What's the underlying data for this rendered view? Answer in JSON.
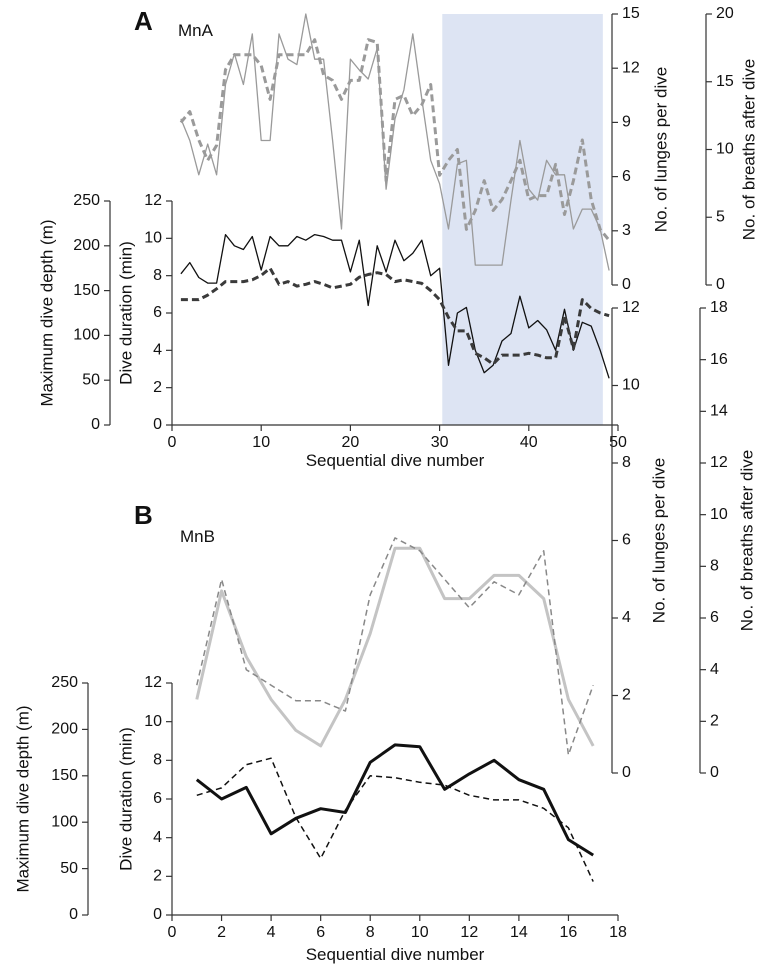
{
  "chart_data": [
    {
      "type": "line",
      "title": "A",
      "annotation": "MnA",
      "xlabel": "Sequential dive number",
      "ylabel": "Dive duration (min)",
      "y2label": "Maximum dive depth (m)",
      "y3label": "No. of lunges per dive",
      "y4label": "No. of breaths after dive",
      "xlim": [
        0,
        50
      ],
      "xticks": [
        0,
        10,
        20,
        30,
        40,
        50
      ],
      "ylim": [
        0,
        12
      ],
      "yticks": [
        0,
        2,
        4,
        6,
        8,
        10,
        12
      ],
      "y2lim": [
        0,
        250
      ],
      "y2ticks": [
        0,
        50,
        100,
        150,
        200,
        250
      ],
      "y3lim": [
        0,
        15
      ],
      "y3ticks": [
        0,
        3,
        6,
        9,
        12,
        15
      ],
      "y4lim": [
        0,
        20
      ],
      "y4ticks": [
        0,
        5,
        10,
        15,
        20
      ],
      "shaded_x": [
        30.3,
        48.3
      ],
      "shade_color": "#dde4f3",
      "x": [
        1,
        2,
        3,
        4,
        5,
        6,
        7,
        8,
        9,
        10,
        11,
        12,
        13,
        14,
        15,
        16,
        17,
        18,
        19,
        20,
        21,
        22,
        23,
        24,
        25,
        26,
        27,
        28,
        29,
        30,
        31,
        32,
        33,
        34,
        35,
        36,
        37,
        38,
        39,
        40,
        41,
        42,
        43,
        44,
        45,
        46,
        47,
        48,
        49
      ],
      "series": [
        {
          "axis": "y",
          "color": "#111111",
          "style": "solid",
          "values": [
            8.1,
            8.7,
            7.9,
            7.6,
            7.6,
            10.2,
            9.6,
            9.4,
            10.1,
            8.3,
            10.1,
            9.6,
            9.6,
            10.1,
            9.9,
            10.2,
            10.1,
            9.9,
            9.9,
            8.2,
            9.9,
            6.4,
            9.6,
            8.2,
            9.9,
            8.8,
            9.2,
            9.9,
            8.0,
            8.4,
            3.2,
            6.0,
            6.3,
            4.0,
            2.8,
            3.2,
            4.5,
            4.9,
            6.9,
            5.2,
            5.6,
            5.1,
            4.0,
            6.2,
            4.0,
            5.5,
            5.3,
            4.0,
            2.5
          ]
        },
        {
          "axis": "y2",
          "color": "#3a3a3a",
          "style": "dashed",
          "values": [
            140,
            140,
            140,
            145,
            152,
            160,
            160,
            160,
            162,
            167,
            175,
            157,
            160,
            155,
            157,
            160,
            157,
            153,
            155,
            157,
            165,
            168,
            170,
            168,
            160,
            162,
            160,
            158,
            150,
            140,
            120,
            105,
            105,
            80,
            75,
            68,
            78,
            78,
            78,
            80,
            78,
            75,
            75,
            122,
            85,
            140,
            130,
            125,
            122
          ]
        },
        {
          "axis": "y3",
          "color": "#9a9a9a",
          "style": "solid",
          "values": [
            9.2,
            8.0,
            6.1,
            7.8,
            6.1,
            11.1,
            12.8,
            11.1,
            13.9,
            8.0,
            8.0,
            13.9,
            12.5,
            12.2,
            15.0,
            12.5,
            12.5,
            8.0,
            3.1,
            12.5,
            11.9,
            11.4,
            13.1,
            5.3,
            9.2,
            10.8,
            13.9,
            10.3,
            6.9,
            5.6,
            3.1,
            6.7,
            6.9,
            1.1,
            1.1,
            1.1,
            1.1,
            4.7,
            8.0,
            5.3,
            4.7,
            6.9,
            6.1,
            6.1,
            3.1,
            4.2,
            4.2,
            3.1,
            0.8
          ]
        },
        {
          "axis": "y4",
          "color": "#9a9a9a",
          "style": "dashed",
          "values": [
            12.0,
            12.8,
            10.7,
            9.2,
            10.3,
            15.9,
            17.0,
            17.0,
            17.0,
            16.2,
            13.7,
            17.0,
            17.0,
            17.0,
            17.0,
            18.1,
            15.5,
            15.1,
            13.7,
            15.1,
            15.1,
            18.1,
            17.9,
            7.7,
            13.7,
            14.0,
            12.5,
            13.3,
            14.8,
            8.1,
            9.2,
            10.0,
            4.1,
            5.5,
            7.7,
            5.5,
            6.3,
            7.7,
            9.2,
            6.3,
            6.6,
            6.6,
            8.9,
            5.2,
            7.7,
            10.7,
            6.3,
            4.1,
            3.3
          ]
        }
      ]
    },
    {
      "type": "line",
      "title": "B",
      "annotation": "MnB",
      "xlabel": "Sequential dive number",
      "ylabel": "Dive duration (min)",
      "y2label": "Maximum dive depth (m)",
      "y3label": "No. of lunges per dive",
      "y4label": "No. of breaths after dive",
      "xlim": [
        0,
        18
      ],
      "xticks": [
        0,
        2,
        4,
        6,
        8,
        10,
        12,
        14,
        16,
        18
      ],
      "ylim": [
        0,
        12
      ],
      "yticks": [
        0,
        2,
        4,
        6,
        8,
        10,
        12
      ],
      "y2lim": [
        0,
        250
      ],
      "y2ticks": [
        0,
        50,
        100,
        150,
        200,
        250
      ],
      "y3lim": [
        0,
        12
      ],
      "y3ticks": [
        0,
        2,
        4,
        6,
        8,
        10,
        12
      ],
      "y4lim": [
        0,
        18
      ],
      "y4ticks": [
        0,
        2,
        4,
        6,
        8,
        10,
        12,
        14,
        16,
        18
      ],
      "x": [
        1,
        2,
        3,
        4,
        5,
        6,
        7,
        8,
        9,
        10,
        11,
        12,
        13,
        14,
        15,
        16,
        17
      ],
      "series": [
        {
          "axis": "y",
          "color": "#111111",
          "style": "solid",
          "values": [
            7.0,
            6.0,
            6.6,
            4.2,
            5.0,
            5.5,
            5.3,
            7.9,
            8.8,
            8.7,
            6.5,
            7.3,
            8.0,
            7.0,
            6.5,
            3.9,
            3.1
          ]
        },
        {
          "axis": "y2",
          "color": "#111111",
          "style": "dashed",
          "values": [
            129,
            137,
            162,
            169,
            105,
            61,
            113,
            150,
            148,
            143,
            140,
            129,
            124,
            124,
            115,
            94,
            36
          ]
        },
        {
          "axis": "y3",
          "color": "#c4c4c4",
          "style": "solid",
          "values": [
            1.9,
            4.7,
            3.0,
            1.9,
            1.1,
            0.7,
            1.9,
            3.6,
            5.8,
            5.8,
            4.5,
            4.5,
            5.1,
            5.1,
            4.5,
            1.9,
            0.7
          ]
        },
        {
          "axis": "y4",
          "color": "#888888",
          "style": "dashed",
          "values": [
            3.4,
            7.5,
            4.0,
            3.4,
            2.8,
            2.8,
            2.4,
            6.9,
            9.1,
            8.6,
            7.5,
            6.4,
            7.4,
            6.9,
            8.6,
            0.7,
            3.4
          ]
        }
      ]
    }
  ]
}
